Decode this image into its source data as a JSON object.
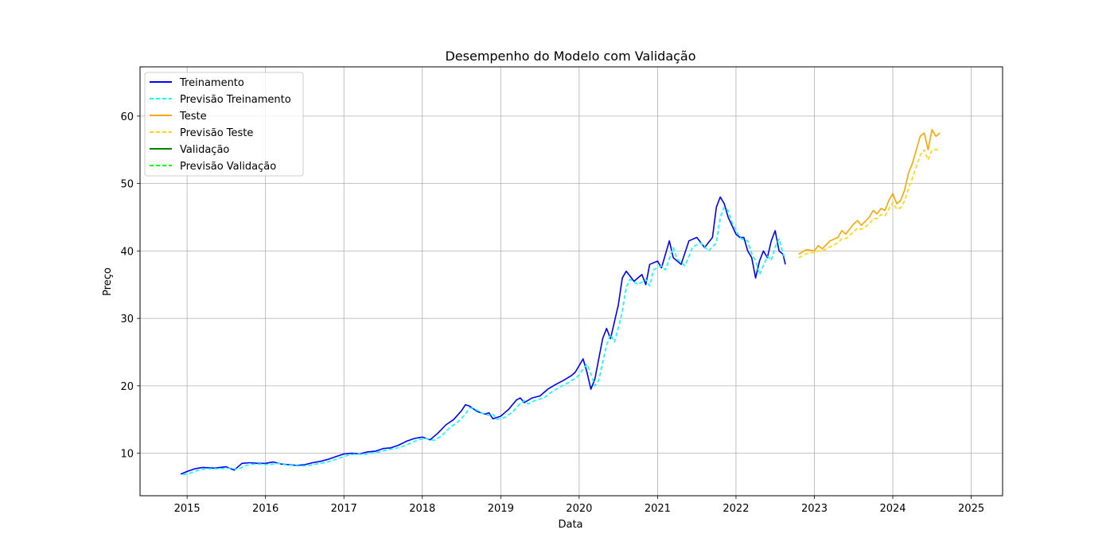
{
  "chart_data": {
    "type": "line",
    "title": "Desempenho do Modelo com Validação",
    "xlabel": "Data",
    "ylabel": "Preço",
    "xlim": [
      2014.4,
      2025.4
    ],
    "ylim": [
      3.7,
      67.3
    ],
    "x_ticks": [
      2015,
      2016,
      2017,
      2018,
      2019,
      2020,
      2021,
      2022,
      2023,
      2024,
      2025
    ],
    "x_tick_labels": [
      "2015",
      "2016",
      "2017",
      "2018",
      "2019",
      "2020",
      "2021",
      "2022",
      "2023",
      "2024",
      "2025"
    ],
    "y_ticks": [
      10,
      20,
      30,
      40,
      50,
      60
    ],
    "y_tick_labels": [
      "10",
      "20",
      "30",
      "40",
      "50",
      "60"
    ],
    "grid": true,
    "legend_position": "top-left",
    "series": [
      {
        "name": "Treinamento",
        "color": "#0000ff",
        "style": "solid",
        "x": [
          2014.92,
          2015.0,
          2015.1,
          2015.2,
          2015.35,
          2015.5,
          2015.6,
          2015.7,
          2015.8,
          2015.9,
          2016.0,
          2016.1,
          2016.2,
          2016.3,
          2016.4,
          2016.5,
          2016.6,
          2016.7,
          2016.8,
          2016.9,
          2017.0,
          2017.1,
          2017.2,
          2017.3,
          2017.4,
          2017.5,
          2017.6,
          2017.7,
          2017.8,
          2017.9,
          2018.0,
          2018.1,
          2018.2,
          2018.3,
          2018.4,
          2018.5,
          2018.55,
          2018.6,
          2018.7,
          2018.8,
          2018.85,
          2018.9,
          2019.0,
          2019.1,
          2019.2,
          2019.25,
          2019.3,
          2019.4,
          2019.5,
          2019.6,
          2019.7,
          2019.8,
          2019.9,
          2019.95,
          2020.0,
          2020.05,
          2020.1,
          2020.15,
          2020.2,
          2020.3,
          2020.35,
          2020.4,
          2020.45,
          2020.5,
          2020.55,
          2020.6,
          2020.7,
          2020.8,
          2020.85,
          2020.9,
          2021.0,
          2021.05,
          2021.1,
          2021.15,
          2021.2,
          2021.3,
          2021.4,
          2021.5,
          2021.6,
          2021.7,
          2021.75,
          2021.8,
          2021.85,
          2021.9,
          2022.0,
          2022.05,
          2022.1,
          2022.15,
          2022.2,
          2022.25,
          2022.3,
          2022.35,
          2022.4,
          2022.45,
          2022.5,
          2022.55,
          2022.6,
          2022.63
        ],
        "y": [
          6.9,
          7.3,
          7.7,
          7.9,
          7.8,
          8.0,
          7.5,
          8.5,
          8.6,
          8.5,
          8.5,
          8.7,
          8.4,
          8.3,
          8.2,
          8.3,
          8.6,
          8.8,
          9.1,
          9.5,
          9.9,
          10.0,
          9.9,
          10.2,
          10.3,
          10.7,
          10.8,
          11.2,
          11.8,
          12.2,
          12.4,
          12.0,
          13.0,
          14.2,
          15.0,
          16.3,
          17.2,
          17.0,
          16.2,
          15.8,
          16.0,
          15.1,
          15.5,
          16.5,
          17.9,
          18.2,
          17.5,
          18.2,
          18.5,
          19.5,
          20.2,
          20.8,
          21.5,
          22.0,
          23.0,
          24.0,
          22.0,
          19.5,
          21.0,
          27.0,
          28.5,
          27.0,
          29.5,
          32.0,
          36.0,
          37.0,
          35.5,
          36.5,
          35.0,
          38.0,
          38.5,
          37.5,
          39.5,
          41.5,
          39.0,
          38.0,
          41.5,
          42.0,
          40.5,
          42.0,
          46.5,
          48.0,
          47.0,
          45.0,
          42.5,
          42.0,
          42.0,
          40.0,
          39.0,
          36.0,
          38.5,
          40.0,
          39.0,
          41.5,
          43.0,
          40.0,
          39.5,
          38.0
        ]
      },
      {
        "name": "Previsão Treinamento",
        "color": "#00ffff",
        "style": "dashed",
        "x": [
          2014.95,
          2015.05,
          2015.15,
          2015.25,
          2015.4,
          2015.55,
          2015.65,
          2015.75,
          2015.85,
          2015.95,
          2016.05,
          2016.15,
          2016.25,
          2016.35,
          2016.45,
          2016.55,
          2016.65,
          2016.75,
          2016.85,
          2016.95,
          2017.05,
          2017.15,
          2017.25,
          2017.35,
          2017.45,
          2017.55,
          2017.65,
          2017.75,
          2017.85,
          2017.95,
          2018.05,
          2018.15,
          2018.25,
          2018.35,
          2018.45,
          2018.55,
          2018.6,
          2018.65,
          2018.75,
          2018.85,
          2018.9,
          2018.95,
          2019.05,
          2019.15,
          2019.25,
          2019.3,
          2019.35,
          2019.45,
          2019.55,
          2019.65,
          2019.75,
          2019.85,
          2019.95,
          2020.0,
          2020.05,
          2020.1,
          2020.15,
          2020.2,
          2020.25,
          2020.35,
          2020.4,
          2020.45,
          2020.5,
          2020.55,
          2020.6,
          2020.65,
          2020.75,
          2020.85,
          2020.9,
          2020.95,
          2021.05,
          2021.1,
          2021.15,
          2021.2,
          2021.25,
          2021.35,
          2021.45,
          2021.55,
          2021.65,
          2021.75,
          2021.8,
          2021.85,
          2021.9,
          2021.95,
          2022.05,
          2022.1,
          2022.15,
          2022.2,
          2022.25,
          2022.3,
          2022.35,
          2022.4,
          2022.45,
          2022.5,
          2022.55,
          2022.6,
          2022.63
        ],
        "y": [
          6.8,
          7.1,
          7.5,
          7.7,
          7.7,
          7.8,
          7.6,
          8.2,
          8.4,
          8.4,
          8.3,
          8.5,
          8.3,
          8.2,
          8.1,
          8.2,
          8.4,
          8.6,
          8.9,
          9.3,
          9.7,
          9.9,
          9.8,
          10.0,
          10.2,
          10.5,
          10.7,
          11.0,
          11.5,
          12.0,
          12.2,
          11.9,
          12.6,
          13.8,
          14.6,
          15.8,
          16.7,
          16.7,
          16.0,
          15.6,
          15.8,
          15.0,
          15.3,
          16.1,
          17.4,
          17.8,
          17.3,
          17.9,
          18.2,
          19.1,
          19.8,
          20.4,
          21.1,
          21.6,
          22.5,
          23.2,
          21.8,
          20.0,
          20.8,
          26.0,
          27.6,
          26.5,
          28.6,
          31.0,
          34.6,
          35.8,
          35.0,
          35.8,
          34.8,
          37.2,
          37.8,
          37.2,
          38.8,
          40.5,
          38.8,
          37.8,
          40.6,
          41.2,
          40.0,
          41.2,
          45.0,
          46.5,
          46.0,
          44.2,
          42.0,
          41.6,
          41.5,
          39.6,
          38.6,
          36.5,
          37.8,
          39.2,
          38.6,
          40.6,
          41.8,
          39.6,
          38.8
        ]
      },
      {
        "name": "Teste",
        "color": "#ffa500",
        "style": "solid",
        "x": [
          2022.8,
          2022.9,
          2023.0,
          2023.05,
          2023.1,
          2023.2,
          2023.3,
          2023.35,
          2023.4,
          2023.5,
          2023.55,
          2023.6,
          2023.7,
          2023.75,
          2023.8,
          2023.85,
          2023.9,
          2023.95,
          2024.0,
          2024.05,
          2024.1,
          2024.15,
          2024.2,
          2024.25,
          2024.3,
          2024.35,
          2024.4,
          2024.45,
          2024.5,
          2024.55,
          2024.6
        ],
        "y": [
          39.5,
          40.2,
          40.0,
          40.8,
          40.3,
          41.5,
          42.0,
          43.0,
          42.5,
          44.0,
          44.5,
          43.8,
          45.0,
          46.0,
          45.5,
          46.3,
          46.0,
          47.5,
          48.5,
          47.0,
          47.5,
          49.0,
          51.5,
          53.0,
          55.0,
          57.0,
          57.5,
          55.0,
          58.0,
          57.0,
          57.5
        ]
      },
      {
        "name": "Previsão Teste",
        "color": "#ffd700",
        "style": "dashed",
        "x": [
          2022.8,
          2022.9,
          2023.0,
          2023.05,
          2023.1,
          2023.2,
          2023.3,
          2023.35,
          2023.4,
          2023.5,
          2023.55,
          2023.6,
          2023.7,
          2023.75,
          2023.8,
          2023.85,
          2023.9,
          2023.95,
          2024.0,
          2024.05,
          2024.1,
          2024.15,
          2024.2,
          2024.25,
          2024.3,
          2024.35,
          2024.4,
          2024.45,
          2024.5,
          2024.55,
          2024.6
        ],
        "y": [
          39.0,
          39.6,
          39.8,
          40.0,
          40.0,
          40.6,
          41.2,
          41.8,
          41.8,
          42.8,
          43.4,
          43.2,
          44.0,
          44.8,
          44.8,
          45.4,
          45.2,
          46.2,
          47.2,
          46.2,
          46.4,
          47.4,
          49.2,
          50.8,
          52.5,
          54.2,
          55.0,
          53.5,
          55.0,
          55.0,
          55.0
        ]
      },
      {
        "name": "Validação",
        "color": "#008000",
        "style": "solid",
        "x": [],
        "y": []
      },
      {
        "name": "Previsão Validação",
        "color": "#00ff00",
        "style": "dashed",
        "x": [],
        "y": []
      }
    ]
  }
}
